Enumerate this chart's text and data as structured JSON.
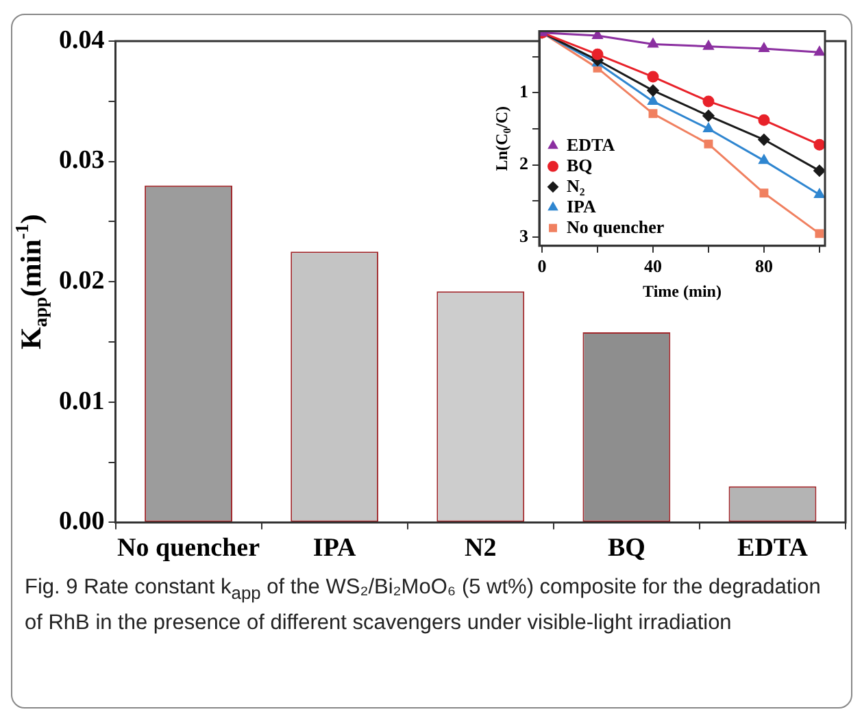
{
  "chart_data": [
    {
      "type": "bar",
      "ylabel": "K$_{app}$(min$^{-1}$)",
      "categories": [
        "No quencher",
        "IPA",
        "N2",
        "BQ",
        "EDTA"
      ],
      "values": [
        0.028,
        0.0225,
        0.0192,
        0.0158,
        0.003
      ],
      "colors": [
        "#9c9c9c",
        "#c4c4c4",
        "#cdcdcd",
        "#8e8e8e",
        "#b4b4b4"
      ],
      "ylim": [
        0,
        0.04
      ],
      "yticks": [
        {
          "value": 0,
          "label": "0.00"
        },
        {
          "value": 0.005,
          "label": null
        },
        {
          "value": 0.01,
          "label": "0.01"
        },
        {
          "value": 0.015,
          "label": null
        },
        {
          "value": 0.02,
          "label": "0.02"
        },
        {
          "value": 0.025,
          "label": null
        },
        {
          "value": 0.03,
          "label": "0.03"
        },
        {
          "value": 0.035,
          "label": null
        },
        {
          "value": 0.04,
          "label": "0.04"
        }
      ],
      "grid": false,
      "annotations": [
        "Fig. 9 Rate constant k$_{app}$ of the WS₂/Bi₂MoO₆ (5 wt%) composite for the degradation of RhB in the presence of different scavengers under visible-light irradiation"
      ]
    },
    {
      "type": "line",
      "xlabel": "Time (min)",
      "ylabel": "Ln(C$_{0}$/C)",
      "x": [
        0,
        20,
        40,
        60,
        80,
        100
      ],
      "series": [
        {
          "name": "EDTA",
          "color": "#8b2fa0",
          "marker": "triangle",
          "values": [
            0.17,
            0.21,
            0.33,
            0.36,
            0.39,
            0.44
          ]
        },
        {
          "name": "BQ",
          "color": "#e8222a",
          "marker": "circle",
          "values": [
            0.17,
            0.47,
            0.78,
            1.12,
            1.38,
            1.72
          ]
        },
        {
          "name": "N₂",
          "color": "#1a1a1a",
          "marker": "diamond",
          "values": [
            0.17,
            0.55,
            0.97,
            1.32,
            1.65,
            2.08
          ]
        },
        {
          "name": "IPA",
          "color": "#2f86d0",
          "marker": "triangle",
          "values": [
            0.17,
            0.59,
            1.12,
            1.5,
            1.94,
            2.41
          ]
        },
        {
          "name": "No quencher",
          "color": "#f08060",
          "marker": "square",
          "values": [
            0.17,
            0.66,
            1.29,
            1.71,
            2.39,
            2.95
          ]
        }
      ],
      "xlim": [
        -1,
        102
      ],
      "xticks": [
        0,
        {
          "value": 20,
          "label": null
        },
        40,
        {
          "value": 60,
          "label": null
        },
        80,
        {
          "value": 100,
          "label": null
        }
      ],
      "ylim": [
        3.12,
        0.15
      ],
      "yticks": [
        {
          "value": 0.5,
          "label": null
        },
        1,
        {
          "value": 1.5,
          "label": null
        },
        2,
        {
          "value": 2.5,
          "label": null
        },
        3
      ],
      "grid": false,
      "legend": "bottom left",
      "line_style": "solid"
    }
  ]
}
